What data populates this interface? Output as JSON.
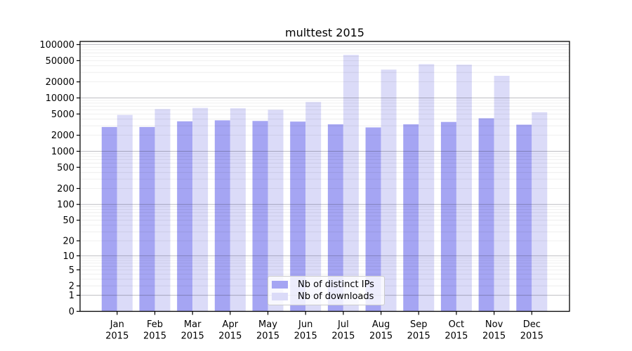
{
  "chart_data": {
    "type": "bar",
    "title": "multtest 2015",
    "categories": [
      "Jan",
      "Feb",
      "Mar",
      "Apr",
      "May",
      "Jun",
      "Jul",
      "Aug",
      "Sep",
      "Oct",
      "Nov",
      "Dec"
    ],
    "x_sublabel": "2015",
    "series": [
      {
        "name": "Nb of distinct IPs",
        "color": "#a5a5f3",
        "values": [
          2850,
          2850,
          3650,
          3800,
          3700,
          3600,
          3200,
          2800,
          3200,
          3550,
          4150,
          3150
        ]
      },
      {
        "name": "Nb of downloads",
        "color": "#dbdbf8",
        "values": [
          4800,
          6200,
          6500,
          6400,
          6000,
          8400,
          64000,
          34000,
          43000,
          42000,
          26000,
          5400
        ]
      }
    ],
    "y_ticks": [
      0,
      1,
      2,
      5,
      10,
      20,
      50,
      100,
      200,
      500,
      1000,
      2000,
      5000,
      10000,
      20000,
      50000,
      100000
    ],
    "y_scale": "log10(value+1)",
    "ylim": [
      0,
      113000
    ],
    "xlabel": "",
    "ylabel": "",
    "grid": "on",
    "legend_position": "lower center",
    "colors": {
      "axis": "#000000",
      "text": "#000000",
      "major_grid": "rgba(40,40,55,0.30)",
      "minor_grid": "rgba(0,0,0,0.08)",
      "legend_border": "#cccccc",
      "legend_bg": "rgba(255,255,255,0.8)"
    }
  }
}
